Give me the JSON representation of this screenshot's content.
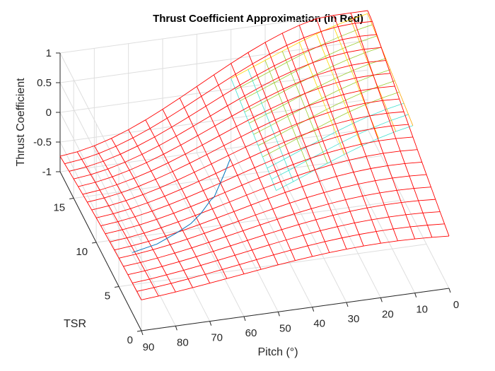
{
  "chart_data": {
    "type": "surface",
    "title": "Thrust Coefficient Approximation (in Red)",
    "xlabel": "Pitch (°)",
    "ylabel": "TSR",
    "zlabel": "Thrust Coefficient",
    "x_ticks": [
      "90",
      "80",
      "70",
      "60",
      "50",
      "40",
      "30",
      "20",
      "10",
      "0"
    ],
    "y_ticks": [
      "0",
      "5",
      "10",
      "15"
    ],
    "z_ticks": [
      "-1",
      "-0.5",
      "0",
      "0.5",
      "1"
    ],
    "xlim": [
      0,
      90
    ],
    "ylim": [
      0,
      18
    ],
    "zlim": [
      -1,
      1
    ],
    "grid": true,
    "series": [
      {
        "kind": "approximation-surface",
        "color": "#ff0000",
        "pitch": [
          0,
          5,
          10,
          15,
          20,
          25,
          30,
          35,
          40,
          45,
          50,
          55,
          60,
          65,
          70,
          75,
          80,
          85,
          90
        ],
        "tsr": [
          0,
          1,
          2,
          3,
          4,
          5,
          6,
          7,
          8,
          9,
          10,
          11,
          12,
          13,
          14,
          15,
          16,
          17,
          18
        ],
        "description_values": "Cos-shaped approximation peaking near pitch 0 at high TSR (~0.75) and dipping to about -0.9 near pitch 0, TSR 0"
      },
      {
        "kind": "reference-surface",
        "colormap": [
          "#00bfff",
          "#40e0d0",
          "#9acd32",
          "#ffd700",
          "#ffa500"
        ],
        "pitch": [
          0,
          5,
          10,
          15,
          20,
          25,
          30,
          35,
          40
        ],
        "tsr": [
          8,
          9,
          10,
          11,
          12,
          13,
          14,
          15,
          16,
          17,
          18
        ],
        "peak_value": 0.98
      },
      {
        "kind": "boundary-curve",
        "color": "#0072bd",
        "pitch": [
          90,
          82,
          75,
          70,
          66,
          62,
          60,
          58,
          56,
          54,
          52,
          50
        ],
        "tsr": [
          2.0,
          2.6,
          3.4,
          4.2,
          5.0,
          5.8,
          6.6,
          7.4,
          8.2,
          9.0,
          9.8,
          10.6
        ],
        "values": [
          0.02,
          0.01,
          0.03,
          0.02,
          0.04,
          0.12,
          0.03,
          0.02,
          0.01,
          0.0,
          0.0,
          0.0
        ]
      }
    ]
  }
}
